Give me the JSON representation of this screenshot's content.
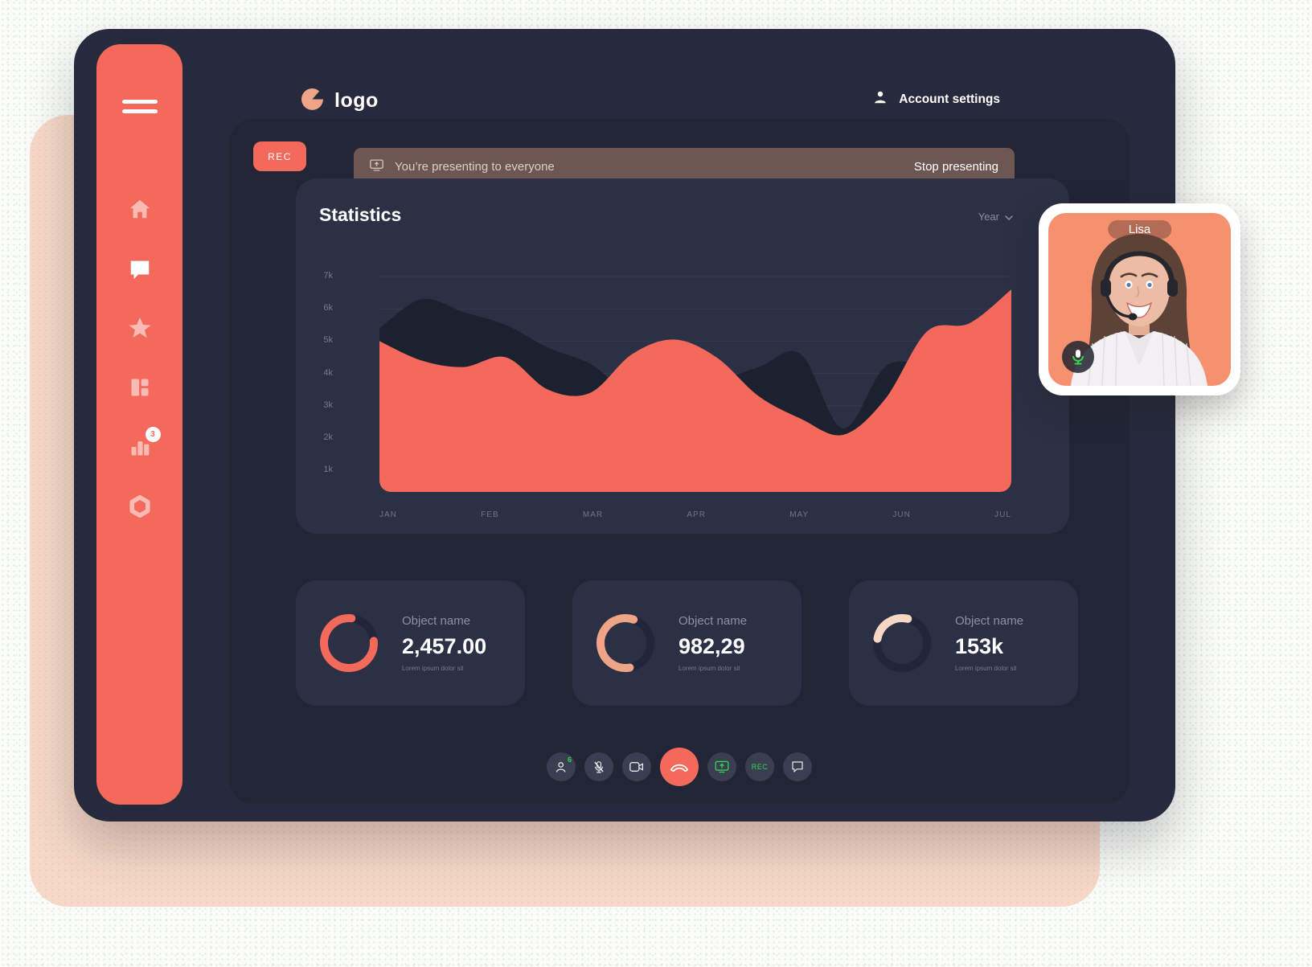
{
  "app": {
    "logo_text": "logo",
    "account_settings_label": "Account settings"
  },
  "sidebar": {
    "items": [
      {
        "icon": "home-icon",
        "active": false
      },
      {
        "icon": "chat-icon",
        "active": true
      },
      {
        "icon": "star-icon",
        "active": false
      },
      {
        "icon": "dashboard-icon",
        "active": false
      },
      {
        "icon": "bar-chart-icon",
        "active": false,
        "badge": "3"
      },
      {
        "icon": "settings-hexagon-icon",
        "active": false
      }
    ],
    "badge": "3"
  },
  "recording": {
    "rec_label": "REC"
  },
  "banner": {
    "message": "You’re presenting to everyone",
    "action": "Stop presenting"
  },
  "stats_header": {
    "title": "Statistics",
    "period": "Year"
  },
  "chart_data": {
    "type": "area",
    "title": "Statistics",
    "x_labels": [
      "JAN",
      "FEB",
      "MAR",
      "APR",
      "MAY",
      "JUN",
      "JUL"
    ],
    "y_ticks": [
      "7k",
      "6k",
      "5k",
      "4k",
      "3k",
      "2k",
      "1k"
    ],
    "ylim": [
      0,
      7.5
    ],
    "grid": true,
    "legend": "none",
    "series": [
      {
        "name": "background-series",
        "color": "#1c2130",
        "values": [
          5.4,
          6.3,
          5.9,
          5.5,
          4.8,
          4.3,
          3.4,
          3.8,
          3.8,
          4.2,
          4.6,
          2.3,
          4.2,
          4.4,
          5.3,
          6.3
        ]
      },
      {
        "name": "primary-series",
        "color": "#f3695c",
        "values": [
          5.0,
          4.4,
          4.2,
          4.5,
          3.5,
          3.4,
          4.6,
          5.05,
          4.5,
          3.3,
          2.6,
          2.1,
          3.2,
          5.3,
          5.55,
          6.6
        ]
      }
    ]
  },
  "cards": [
    {
      "label": "Object name",
      "value": "2,457.00",
      "caption": "Lorem ipsum dolor sit",
      "ring": {
        "percent": 78,
        "rotate": -5,
        "color": "#f3695c"
      }
    },
    {
      "label": "Object name",
      "value": "982,29",
      "caption": "Lorem ipsum dolor sit",
      "ring": {
        "percent": 58,
        "rotate": 80,
        "color": "#f0a487"
      }
    },
    {
      "label": "Object name",
      "value": "153k",
      "caption": "Lorem ipsum dolor sit",
      "ring": {
        "percent": 26,
        "rotate": 190,
        "color": "#f6d7c4"
      }
    }
  ],
  "call_controls": {
    "participants_count": "6",
    "rec_label": "REC"
  },
  "video_call": {
    "participant_name": "Lisa"
  },
  "colors": {
    "accent": "#f3695c",
    "accent_light": "#f0a487",
    "accent_pale": "#f6d7c4",
    "green": "#2fd651",
    "window_bg": "#262a3c",
    "panel_bg": "#212536",
    "card_bg": "#2b3044",
    "banner_bg": "#6e5752",
    "peach_sheet": "#f6d9c8"
  }
}
